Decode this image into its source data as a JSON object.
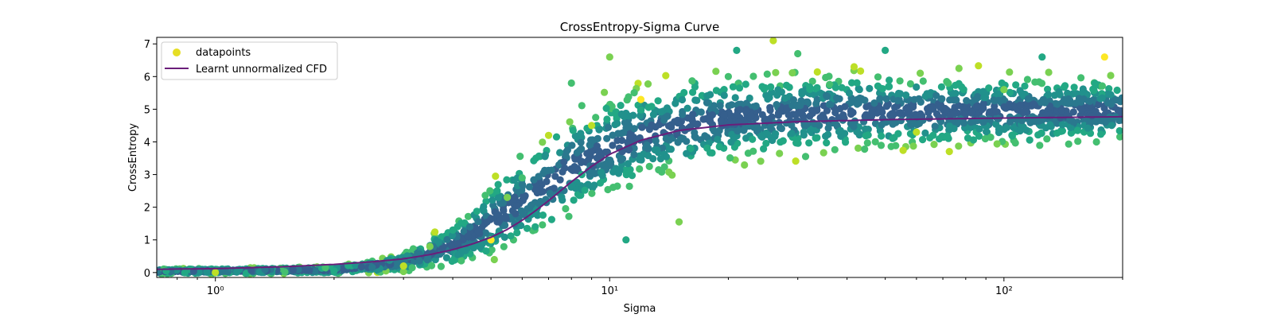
{
  "chart_data": {
    "type": "scatter",
    "title": "CrossEntropy-Sigma Curve",
    "xlabel": "Sigma",
    "ylabel": "CrossEntropy",
    "xscale": "log",
    "xlim": [
      0.71,
      200
    ],
    "ylim": [
      -0.15,
      7.2
    ],
    "xticks": [
      {
        "value": 1,
        "label": "10⁰"
      },
      {
        "value": 10,
        "label": "10¹"
      },
      {
        "value": 100,
        "label": "10²"
      }
    ],
    "yticks": [
      0,
      1,
      2,
      3,
      4,
      5,
      6,
      7
    ],
    "grid": false,
    "legend": {
      "position": "upper-left",
      "entries": [
        {
          "label": "datapoints",
          "marker": "dot",
          "color": "#e6de24"
        },
        {
          "label": "Learnt unnormalized CFD",
          "marker": "line",
          "color": "#6b1e7a"
        }
      ]
    },
    "series": [
      {
        "name": "Learnt unnormalized CFD",
        "type": "line",
        "x": [
          0.71,
          1.0,
          1.5,
          2.0,
          2.5,
          3.0,
          3.5,
          4.0,
          4.5,
          5.0,
          5.5,
          6.0,
          6.5,
          7.0,
          7.5,
          8.0,
          9.0,
          10.0,
          12.0,
          15.0,
          20.0,
          30.0,
          50.0,
          100.0,
          200.0
        ],
        "y": [
          0.1,
          0.12,
          0.18,
          0.25,
          0.33,
          0.42,
          0.55,
          0.7,
          0.88,
          1.08,
          1.32,
          1.6,
          1.9,
          2.2,
          2.5,
          2.78,
          3.25,
          3.62,
          4.05,
          4.35,
          4.52,
          4.62,
          4.68,
          4.73,
          4.77
        ]
      },
      {
        "name": "datapoints",
        "type": "scatter",
        "colormap": "viridis",
        "sample_points": {
          "x": [
            0.75,
            1.0,
            1.5,
            2.0,
            3.0,
            3.5,
            4.0,
            5.0,
            5.5,
            6.0,
            6.5,
            7.0,
            8.0,
            8.5,
            9.0,
            10.0,
            11.0,
            12.0,
            15.0,
            20.0,
            21.0,
            26.0,
            30.0,
            50.0,
            60.0,
            100.0,
            125.0,
            180.0
          ],
          "y": [
            0.05,
            0.0,
            0.02,
            0.05,
            0.2,
            0.8,
            1.3,
            1.0,
            2.3,
            2.9,
            3.5,
            4.2,
            5.8,
            3.0,
            4.5,
            6.6,
            1.0,
            5.3,
            1.55,
            6.0,
            6.8,
            7.1,
            6.7,
            6.8,
            4.3,
            5.6,
            6.6,
            6.6
          ]
        },
        "band_upper": {
          "x": [
            0.71,
            2.0,
            3.0,
            3.5,
            4.0,
            4.5,
            5.0,
            6.0,
            7.0,
            8.0,
            10.0,
            12.0,
            15.0,
            20.0,
            30.0,
            50.0,
            100.0,
            200.0
          ],
          "y": [
            0.12,
            0.2,
            0.6,
            1.1,
            1.6,
            2.2,
            2.9,
            3.8,
            4.5,
            5.1,
            5.6,
            5.9,
            6.1,
            6.3,
            6.3,
            6.3,
            6.2,
            6.1
          ]
        },
        "band_lower": {
          "x": [
            0.71,
            2.0,
            3.0,
            4.0,
            5.0,
            6.0,
            7.0,
            8.0,
            10.0,
            12.0,
            15.0,
            20.0,
            30.0,
            50.0,
            100.0,
            200.0
          ],
          "y": [
            -0.05,
            -0.05,
            0.0,
            0.1,
            0.3,
            0.6,
            1.0,
            1.5,
            2.0,
            2.5,
            2.9,
            3.2,
            3.4,
            3.6,
            3.7,
            3.8
          ]
        }
      }
    ]
  }
}
